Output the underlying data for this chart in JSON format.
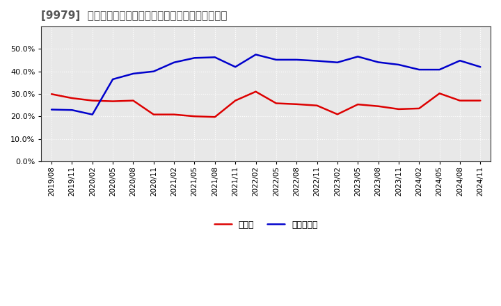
{
  "title": "[9979]  現領金、有利子負債の総資産に対する比率の推移",
  "background_color": "#ffffff",
  "plot_bg_color": "#e8e8e8",
  "grid_color": "#ffffff",
  "ylim": [
    0.0,
    0.6
  ],
  "yticks": [
    0.0,
    0.1,
    0.2,
    0.3,
    0.4,
    0.5
  ],
  "x_labels": [
    "2019/08",
    "2019/11",
    "2020/02",
    "2020/05",
    "2020/08",
    "2020/11",
    "2021/02",
    "2021/05",
    "2021/08",
    "2021/11",
    "2022/02",
    "2022/05",
    "2022/08",
    "2022/11",
    "2023/02",
    "2023/05",
    "2023/08",
    "2023/11",
    "2024/02",
    "2024/05",
    "2024/08",
    "2024/11"
  ],
  "cash_values": [
    0.299,
    0.281,
    0.27,
    0.267,
    0.27,
    0.208,
    0.208,
    0.2,
    0.197,
    0.27,
    0.31,
    0.258,
    0.254,
    0.248,
    0.209,
    0.253,
    0.245,
    0.232,
    0.235,
    0.302,
    0.27,
    0.27
  ],
  "debt_values": [
    0.23,
    0.228,
    0.208,
    0.365,
    0.39,
    0.4,
    0.44,
    0.46,
    0.463,
    0.42,
    0.475,
    0.452,
    0.452,
    0.447,
    0.44,
    0.466,
    0.441,
    0.43,
    0.408,
    0.408,
    0.448,
    0.42
  ],
  "cash_color": "#dd0000",
  "debt_color": "#0000cc",
  "legend_cash": "現領金",
  "legend_debt": "有利子負債",
  "line_width": 1.8,
  "title_fontsize": 11,
  "tick_fontsize": 8,
  "legend_fontsize": 9
}
